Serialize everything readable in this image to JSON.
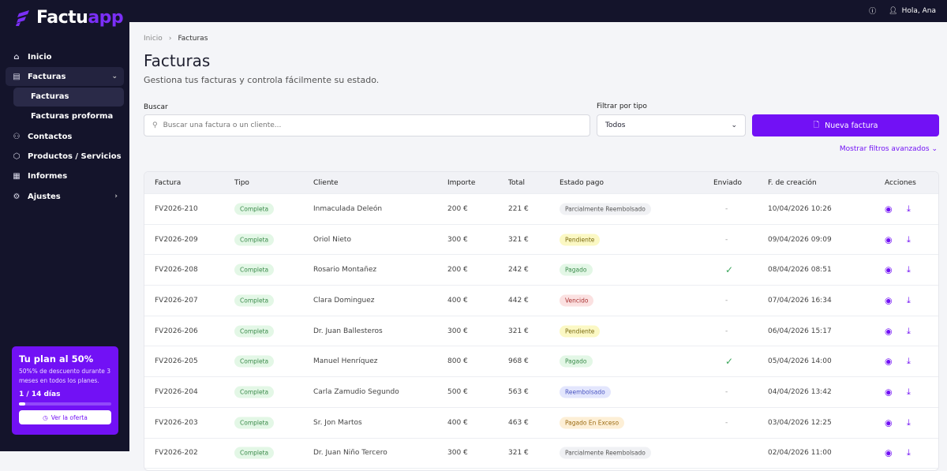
{
  "brand": {
    "name_a": "Factu",
    "name_b": "app",
    "accent": "#7211f5"
  },
  "topbar": {
    "help_icon": "question-circle",
    "user_icon": "user",
    "greeting": "Hola, Ana"
  },
  "sidebar": {
    "items": [
      {
        "label": "Inicio",
        "icon": "home"
      },
      {
        "label": "Facturas",
        "icon": "file"
      },
      {
        "label": "Facturas",
        "sub": true
      },
      {
        "label": "Facturas proforma",
        "sub": true
      },
      {
        "label": "Contactos",
        "icon": "users"
      },
      {
        "label": "Productos / Servicios",
        "icon": "box"
      },
      {
        "label": "Informes",
        "icon": "report"
      },
      {
        "label": "Ajustes",
        "icon": "gear"
      }
    ]
  },
  "promo": {
    "title": "Tu plan al 50%",
    "text": "50%% de descuento durante 3 meses en todos los planes.",
    "days": "1 / 14 días",
    "progress": 0.07,
    "button": "Ver la oferta"
  },
  "breadcrumb": {
    "home": "Inicio",
    "sep": "›",
    "current": "Facturas"
  },
  "page": {
    "title": "Facturas",
    "subtitle": "Gestiona tus facturas y controla fácilmente su estado."
  },
  "search": {
    "label": "Buscar",
    "placeholder": "Buscar una factura o un cliente...",
    "value": ""
  },
  "filter": {
    "label": "Filtrar por tipo",
    "value": "Todos"
  },
  "new_button": "Nueva factura",
  "advanced": "Mostrar filtros avanzados",
  "table": {
    "headers": [
      "Factura",
      "Tipo",
      "Cliente",
      "Importe",
      "Total",
      "Estado pago",
      "Enviado",
      "F. de creación",
      "Acciones"
    ],
    "rows": [
      [
        "FV2026-210",
        "Completa",
        "Inmaculada Deleón",
        "200 €",
        "221 €",
        "Parcialmente Reembolsado",
        "-",
        "10/04/2026 10:26"
      ],
      [
        "FV2026-209",
        "Completa",
        "Oriol Nieto",
        "300 €",
        "321 €",
        "Pendiente",
        "-",
        "09/04/2026 09:09"
      ],
      [
        "FV2026-208",
        "Completa",
        "Rosario Montañez",
        "200 €",
        "242 €",
        "Pagado",
        "✓",
        "08/04/2026 08:51"
      ],
      [
        "FV2026-207",
        "Completa",
        "Clara Dominguez",
        "400 €",
        "442 €",
        "Vencido",
        "-",
        "07/04/2026 16:34"
      ],
      [
        "FV2026-206",
        "Completa",
        "Dr. Juan Ballesteros",
        "300 €",
        "321 €",
        "Pendiente",
        "-",
        "06/04/2026 15:17"
      ],
      [
        "FV2026-205",
        "Completa",
        "Manuel Henríquez",
        "800 €",
        "968 €",
        "Pagado",
        "✓",
        "05/04/2026 14:00"
      ],
      [
        "FV2026-204",
        "Completa",
        "Carla Zamudio Segundo",
        "500 €",
        "563 €",
        "Reembolsado",
        "-",
        "04/04/2026 13:42"
      ],
      [
        "FV2026-203",
        "Completa",
        "Sr. Jon Martos",
        "400 €",
        "463 €",
        "Pagado En Exceso",
        "-",
        "03/04/2026 12:25"
      ],
      [
        "FV2026-202",
        "Completa",
        "Dr. Juan Niño Tercero",
        "300 €",
        "321 €",
        "Parcialmente Reembolsado",
        "",
        "02/04/2026 11:00"
      ]
    ]
  },
  "status_colors": {
    "Parcialmente Reembolsado": [
      "#f0f1f4",
      "#555"
    ],
    "Pendiente": [
      "#fbf8c4",
      "#7a6a10"
    ],
    "Pagado": [
      "#e3f7e6",
      "#3a8a4a"
    ],
    "Vencido": [
      "#fbe1e1",
      "#a33"
    ],
    "Reembolsado": [
      "#e3e6fd",
      "#4a55c0"
    ],
    "Pagado En Exceso": [
      "#fdefd6",
      "#9a6a10"
    ],
    "Completa": [
      "#e3f7e6",
      "#3a8a4a"
    ]
  }
}
